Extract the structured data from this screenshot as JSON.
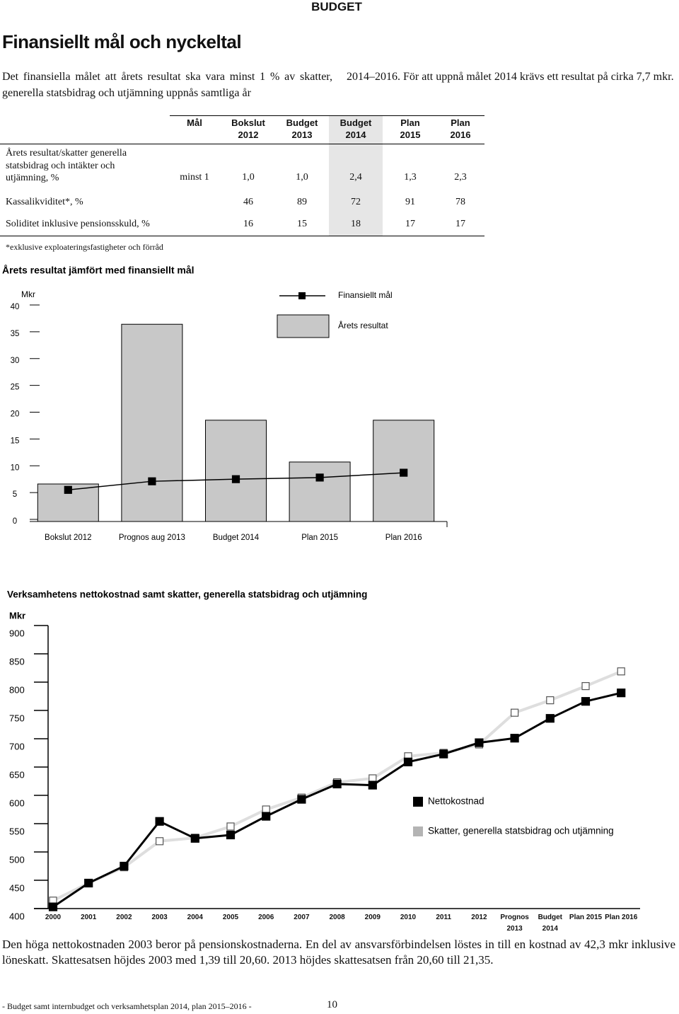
{
  "header": {
    "label": "BUDGET",
    "title": "Finansiellt mål och nyckeltal"
  },
  "intro": {
    "left": "Det finansiella målet att årets resultat ska vara minst 1 % av skatter, generella statsbidrag och utjämning uppnås samtliga år",
    "right": "2014–2016. För att uppnå målet 2014 krävs ett resultat på cirka 7,7 mkr."
  },
  "table": {
    "columns": [
      {
        "name": "Mål"
      },
      {
        "name": "Bokslut",
        "year": "2012"
      },
      {
        "name": "Budget",
        "year": "2013"
      },
      {
        "name": "Budget",
        "year": "2014"
      },
      {
        "name": "Plan",
        "year": "2015"
      },
      {
        "name": "Plan",
        "year": "2016"
      }
    ],
    "rows": [
      {
        "label": "Årets resultat/skatter generella statsbidrag och intäkter och utjämning, %",
        "goal": "minst 1",
        "values": [
          "1,0",
          "1,0",
          "2,4",
          "1,3",
          "2,3"
        ]
      },
      {
        "label": "Kassalikviditet*, %",
        "values": [
          "46",
          "89",
          "72",
          "91",
          "78"
        ]
      },
      {
        "label": "Soliditet inklusive pensionsskuld, %",
        "values": [
          "16",
          "15",
          "18",
          "17",
          "17"
        ]
      }
    ],
    "footnote": "*exklusive exploateringsfastigheter och förråd"
  },
  "chart_data": [
    {
      "type": "combo",
      "title": "Årets resultat jämfört med finansiellt mål",
      "y_label": "Mkr",
      "categories": [
        "Bokslut 2012",
        "Prognos aug 2013",
        "Budget 2014",
        "Plan 2015",
        "Plan 2016"
      ],
      "series": [
        {
          "name": "Finansiellt mål",
          "style": "line",
          "color": "#000000",
          "values": [
            5.9,
            7.5,
            7.9,
            8.2,
            9.1
          ]
        },
        {
          "name": "Årets resultat",
          "style": "bar",
          "color": "#c8c8c8",
          "values": [
            7.0,
            36.8,
            18.9,
            11.1,
            18.9
          ]
        }
      ],
      "ylim": [
        0,
        40
      ],
      "yticks": [
        0,
        5,
        10,
        15,
        20,
        25,
        30,
        35,
        40
      ]
    },
    {
      "type": "line",
      "title": "Verksamhetens nettokostnad samt skatter, generella statsbidrag och utjämning",
      "y_label": "Mkr",
      "categories": [
        "2000",
        "2001",
        "2002",
        "2003",
        "2004",
        "2005",
        "2006",
        "2007",
        "2008",
        "2009",
        "2010",
        "2011",
        "2012",
        "Prognos 2013",
        "Budget 2014",
        "Plan 2015",
        "Plan 2016"
      ],
      "series": [
        {
          "name": "Skatter, generella statsbidrag och utjämning",
          "color": "#dedede",
          "marker_fill": "#ffffff",
          "marker_stroke": "#555555",
          "legend_color": "#b4b4b4",
          "values": [
            414,
            445,
            473,
            519,
            525,
            545,
            575,
            596,
            623,
            630,
            669,
            675,
            690,
            746,
            768,
            793,
            819
          ]
        },
        {
          "name": "Nettokostnad",
          "color": "#000000",
          "marker_fill": "#000000",
          "marker_stroke": "#000000",
          "legend_color": "#000000",
          "values": [
            403,
            445,
            475,
            554,
            524,
            530,
            563,
            593,
            620,
            618,
            659,
            673,
            693,
            701,
            736,
            766,
            781
          ]
        }
      ],
      "legend_order": [
        1,
        0
      ],
      "ylim": [
        400,
        900
      ],
      "yticks": [
        400,
        450,
        500,
        550,
        600,
        650,
        700,
        750,
        800,
        850,
        900
      ]
    }
  ],
  "note": "Den höga nettokostnaden 2003 beror på pensionskostnaderna. En del av ansvarsförbindelsen löstes in till en kostnad av 42,3 mkr inklusive löneskatt. Skattesatsen höjdes 2003 med 1,39 till 20,60. 2013 höjdes skattesatsen från 20,60 till 21,35.",
  "footer": {
    "text": "- Budget samt internbudget och verksamhetsplan 2014, plan 2015–2016 -",
    "page": "10"
  }
}
